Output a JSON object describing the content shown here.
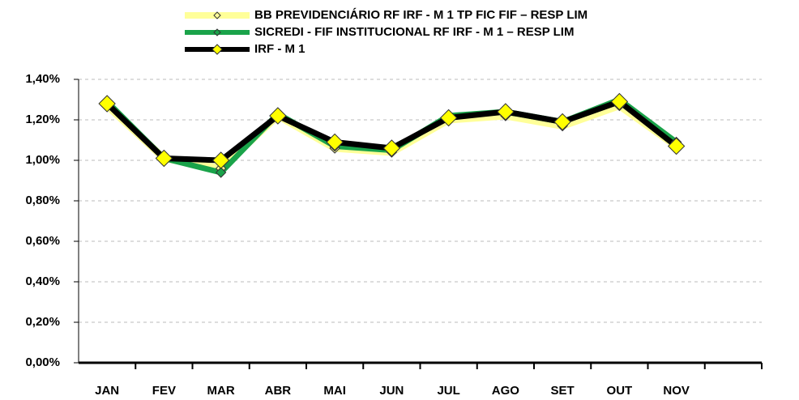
{
  "chart_data": {
    "type": "line",
    "categories": [
      "JAN",
      "FEV",
      "MAR",
      "ABR",
      "MAI",
      "JUN",
      "JUL",
      "AGO",
      "SET",
      "OUT",
      "NOV",
      null
    ],
    "series": [
      {
        "name": "BB PREVIDENCIÁRIO RF IRF - M 1 TP FIC FIF – RESP LIM",
        "color": "#ffff99",
        "marker_color": "#ffff99",
        "values": [
          1.27,
          1.01,
          0.96,
          1.22,
          1.06,
          1.04,
          1.2,
          1.22,
          1.17,
          1.27,
          1.07,
          null
        ]
      },
      {
        "name": "SICREDI - FIF INSTITUCIONAL RF IRF - M 1 – RESP LIM",
        "color": "#1aa34a",
        "marker_color": "#1aa34a",
        "values": [
          1.29,
          1.01,
          0.94,
          1.23,
          1.07,
          1.05,
          1.22,
          1.24,
          1.19,
          1.3,
          1.09,
          null
        ]
      },
      {
        "name": "IRF - M 1",
        "color": "#000000",
        "marker_color": "#ffff00",
        "values": [
          1.28,
          1.01,
          1.0,
          1.22,
          1.09,
          1.06,
          1.21,
          1.24,
          1.19,
          1.29,
          1.07,
          null
        ]
      }
    ],
    "ylim": [
      0,
      1.4
    ],
    "yticks": [
      {
        "value": 0,
        "label": "0,00%"
      },
      {
        "value": 0.2,
        "label": "0,20%"
      },
      {
        "value": 0.4,
        "label": "0,40%"
      },
      {
        "value": 0.6,
        "label": "0,60%"
      },
      {
        "value": 0.8,
        "label": "0,80%"
      },
      {
        "value": 1.0,
        "label": "1,00%"
      },
      {
        "value": 1.2,
        "label": "1,20%"
      },
      {
        "value": 1.4,
        "label": "1,40%"
      }
    ],
    "grid": true,
    "legend": "top"
  }
}
